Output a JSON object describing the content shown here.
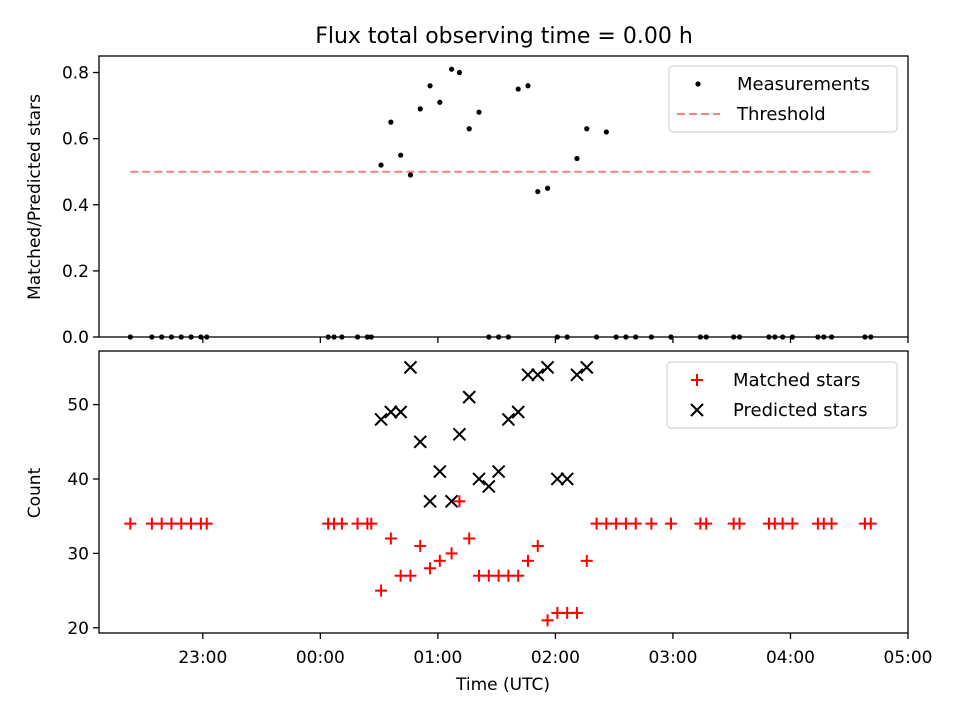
{
  "chart_data": [
    {
      "type": "scatter",
      "title": "Flux total observing time = 0.00 h",
      "ylabel": "Matched/Predicted stars",
      "ylim": [
        0,
        0.85
      ],
      "yticks": [
        "0.0",
        "0.2",
        "0.4",
        "0.6",
        "0.8"
      ],
      "legend": {
        "placement": "top-right",
        "entries": [
          "Measurements",
          "Threshold"
        ]
      },
      "colors": {
        "measurements": "#000000",
        "threshold": "#ff7f7f"
      },
      "threshold": {
        "value": 0.5,
        "x_start": "22:23",
        "x_end": "04:41"
      },
      "series": [
        {
          "name": "Measurements",
          "x": [
            "22:23",
            "22:34",
            "22:39",
            "22:44",
            "22:49",
            "22:54",
            "22:59",
            "23:02",
            "00:04",
            "00:07",
            "00:11",
            "00:19",
            "00:24",
            "00:26",
            "00:31",
            "00:36",
            "00:41",
            "00:46",
            "00:51",
            "00:56",
            "01:01",
            "01:07",
            "01:11",
            "01:16",
            "01:21",
            "01:26",
            "01:31",
            "01:36",
            "01:41",
            "01:46",
            "01:51",
            "01:56",
            "02:01",
            "02:06",
            "02:11",
            "02:16",
            "02:21",
            "02:26",
            "02:31",
            "02:36",
            "02:41",
            "02:49",
            "02:59",
            "03:14",
            "03:17",
            "03:31",
            "03:34",
            "03:49",
            "03:52",
            "03:56",
            "04:01",
            "04:14",
            "04:17",
            "04:21",
            "04:38",
            "04:41"
          ],
          "y": [
            0,
            0,
            0,
            0,
            0,
            0,
            0,
            0,
            0,
            0,
            0,
            0,
            0,
            0,
            0.52,
            0.65,
            0.55,
            0.49,
            0.69,
            0.76,
            0.71,
            0.81,
            0.8,
            0.63,
            0.68,
            0,
            0,
            0,
            0.75,
            0.76,
            0.44,
            0.45,
            0,
            0,
            0.54,
            0.63,
            0,
            0.62,
            0,
            0,
            0,
            0,
            0,
            0,
            0,
            0,
            0,
            0,
            0,
            0,
            0,
            0,
            0,
            0,
            0,
            0
          ]
        }
      ]
    },
    {
      "type": "scatter",
      "xlabel": "Time (UTC)",
      "ylabel": "Count",
      "ylim": [
        19.3,
        57.2
      ],
      "xlim": [
        "22:07",
        "05:00"
      ],
      "yticks": [
        "20",
        "30",
        "40",
        "50"
      ],
      "xticks": [
        "23:00",
        "00:00",
        "01:00",
        "02:00",
        "03:00",
        "04:00",
        "05:00"
      ],
      "legend": {
        "placement": "top-right",
        "entries": [
          "Matched stars",
          "Predicted stars"
        ]
      },
      "colors": {
        "matched": "#ff0000",
        "predicted": "#000000"
      },
      "series": [
        {
          "name": "Matched stars",
          "x": [
            "22:23",
            "22:34",
            "22:39",
            "22:44",
            "22:49",
            "22:54",
            "22:59",
            "23:02",
            "00:04",
            "00:07",
            "00:11",
            "00:19",
            "00:24",
            "00:26",
            "00:31",
            "00:36",
            "00:41",
            "00:46",
            "00:51",
            "00:56",
            "01:01",
            "01:07",
            "01:11",
            "01:16",
            "01:21",
            "01:26",
            "01:31",
            "01:36",
            "01:41",
            "01:46",
            "01:51",
            "01:56",
            "02:01",
            "02:06",
            "02:11",
            "02:16",
            "02:21",
            "02:26",
            "02:31",
            "02:36",
            "02:41",
            "02:49",
            "02:59",
            "03:14",
            "03:17",
            "03:31",
            "03:34",
            "03:49",
            "03:52",
            "03:56",
            "04:01",
            "04:14",
            "04:17",
            "04:21",
            "04:38",
            "04:41"
          ],
          "y": [
            34,
            34,
            34,
            34,
            34,
            34,
            34,
            34,
            34,
            34,
            34,
            34,
            34,
            34,
            25,
            32,
            27,
            27,
            31,
            28,
            29,
            30,
            37,
            32,
            27,
            27,
            27,
            27,
            27,
            29,
            31,
            21,
            22,
            22,
            22,
            29,
            34,
            34,
            34,
            34,
            34,
            34,
            34,
            34,
            34,
            34,
            34,
            34,
            34,
            34,
            34,
            34,
            34,
            34,
            34,
            34
          ]
        },
        {
          "name": "Predicted stars",
          "x": [
            "00:31",
            "00:36",
            "00:41",
            "00:46",
            "00:51",
            "00:56",
            "01:01",
            "01:07",
            "01:11",
            "01:16",
            "01:21",
            "01:26",
            "01:31",
            "01:36",
            "01:41",
            "01:46",
            "01:51",
            "01:56",
            "02:01",
            "02:06",
            "02:11",
            "02:16"
          ],
          "y": [
            48,
            49,
            49,
            55,
            45,
            37,
            41,
            37,
            46,
            51,
            40,
            39,
            41,
            48,
            49,
            54,
            54,
            55,
            40,
            40,
            54,
            55
          ]
        }
      ]
    }
  ]
}
